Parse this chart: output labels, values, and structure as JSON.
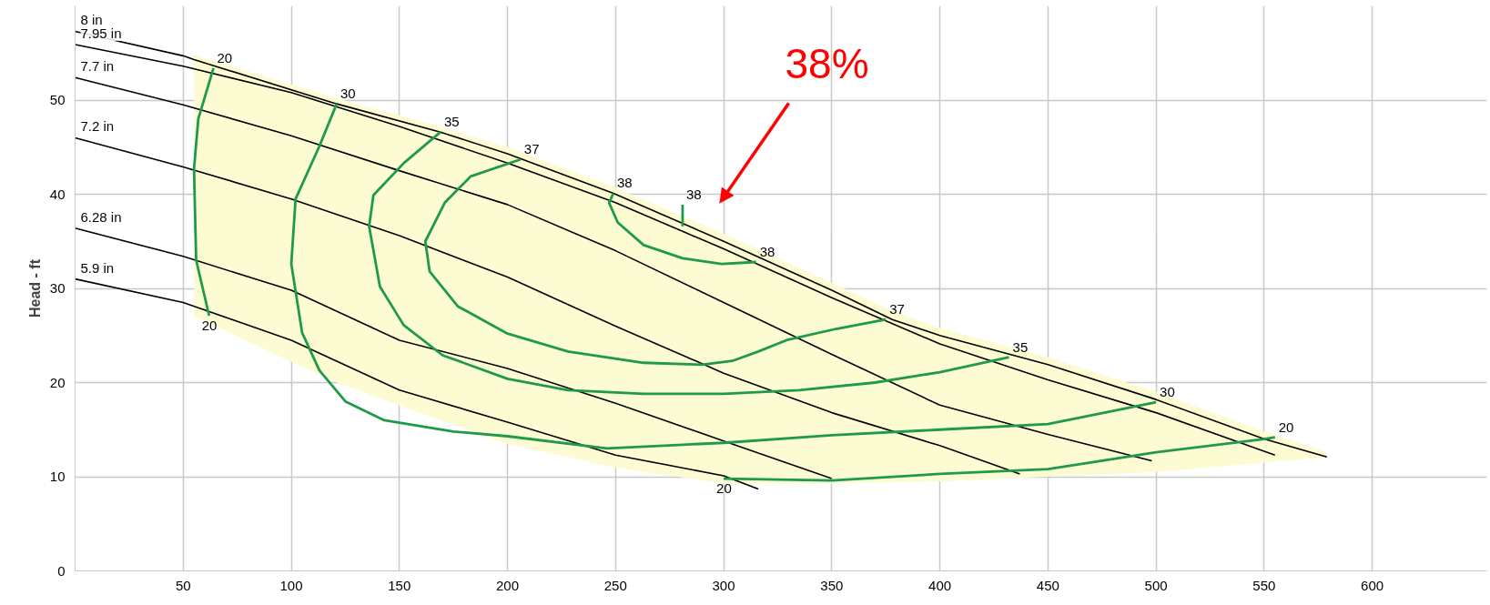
{
  "chart_data": {
    "type": "line",
    "ylabel": "Head - ft",
    "xlim": [
      0,
      653
    ],
    "ylim": [
      0,
      60
    ],
    "xticks": [
      50,
      100,
      150,
      200,
      250,
      300,
      350,
      400,
      450,
      500,
      550,
      600
    ],
    "yticks": [
      0,
      10,
      20,
      30,
      40,
      50
    ],
    "grid": true,
    "marker": "none",
    "line_style": "solid",
    "series": [
      {
        "name": "8 in",
        "color": "#000000",
        "x": [
          0,
          50,
          55,
          121,
          169,
          200,
          249,
          300,
          350,
          378,
          400,
          450,
          500,
          550,
          579
        ],
        "values": [
          57.3,
          54.7,
          54.3,
          49.6,
          46.6,
          44.3,
          40.1,
          35.0,
          29.8,
          26.7,
          25.0,
          21.9,
          18.2,
          14.0,
          12.1
        ],
        "upper": [
          null,
          null,
          54.8,
          50.2,
          47.2,
          45.0,
          40.8,
          35.8,
          30.6,
          27.6,
          25.8,
          22.7,
          19.0,
          14.8,
          12.6
        ],
        "lower": [
          null,
          null,
          27.0,
          20.0,
          16.0,
          13.5,
          11.0,
          9.3,
          9.3,
          9.4,
          9.5,
          10.0,
          10.5,
          11.5,
          12.1
        ]
      },
      {
        "name": "7.95 in",
        "color": "#000000",
        "x": [
          0,
          50,
          100,
          150,
          200,
          250,
          300,
          350,
          400,
          450,
          500,
          555
        ],
        "values": [
          55.9,
          53.6,
          50.8,
          47.2,
          43.3,
          39.1,
          34.2,
          29.0,
          24.1,
          20.3,
          16.8,
          12.3
        ]
      },
      {
        "name": "7.7 in",
        "color": "#000000",
        "x": [
          0,
          50,
          100,
          150,
          200,
          250,
          300,
          350,
          400,
          450,
          498
        ],
        "values": [
          52.4,
          49.5,
          46.2,
          42.5,
          38.9,
          34.0,
          28.5,
          23.0,
          17.6,
          14.5,
          11.7
        ]
      },
      {
        "name": "7.2 in",
        "color": "#000000",
        "x": [
          0,
          50,
          100,
          150,
          200,
          250,
          300,
          350,
          400,
          437
        ],
        "values": [
          46.0,
          42.9,
          39.5,
          35.6,
          31.2,
          26.0,
          21.0,
          16.8,
          13.3,
          10.3
        ]
      },
      {
        "name": "6.28 in",
        "color": "#000000",
        "x": [
          0,
          50,
          100,
          150,
          200,
          250,
          300,
          350
        ],
        "values": [
          36.4,
          33.4,
          29.8,
          24.5,
          21.5,
          17.8,
          13.8,
          9.8
        ]
      },
      {
        "name": "5.9 in",
        "color": "#000000",
        "x": [
          0,
          50,
          100,
          150,
          200,
          250,
          300,
          316
        ],
        "values": [
          31.0,
          28.5,
          24.5,
          19.2,
          15.8,
          12.3,
          10.1,
          8.7
        ]
      },
      {
        "color": "#1e9a4a",
        "x": [
          64,
          57,
          55,
          56,
          62
        ],
        "values": [
          53.4,
          48.0,
          42.7,
          33.0,
          27.1
        ]
      },
      {
        "color": "#1e9a4a",
        "x": [
          121,
          113,
          102,
          100,
          105,
          113,
          125,
          143,
          175,
          200,
          246,
          281,
          300,
          350,
          400,
          450,
          500
        ],
        "values": [
          49.6,
          45.1,
          39.5,
          32.6,
          25.3,
          21.3,
          18.0,
          16.0,
          14.8,
          14.3,
          13.0,
          13.4,
          13.6,
          14.4,
          15.0,
          15.6,
          17.9
        ]
      },
      {
        "color": "#1e9a4a",
        "x": [
          169,
          152,
          138,
          136,
          141,
          152,
          170,
          200,
          228,
          263,
          300,
          335,
          370,
          400,
          432
        ],
        "values": [
          46.6,
          43.3,
          39.9,
          36.6,
          30.2,
          26.1,
          22.9,
          20.4,
          19.2,
          18.8,
          18.8,
          19.2,
          20.0,
          21.1,
          22.7
        ]
      },
      {
        "color": "#1e9a4a",
        "x": [
          206,
          183,
          171,
          162,
          164,
          177,
          200,
          228,
          263,
          290,
          304,
          316,
          329,
          352,
          375
        ],
        "values": [
          43.7,
          41.9,
          39.1,
          35.0,
          31.8,
          28.1,
          25.2,
          23.3,
          22.1,
          21.9,
          22.3,
          23.3,
          24.5,
          25.7,
          26.7
        ]
      },
      {
        "color": "#1e9a4a",
        "x": [
          249,
          247,
          251,
          263,
          281,
          299,
          315
        ],
        "values": [
          40.1,
          39.1,
          37.0,
          34.6,
          33.2,
          32.6,
          32.8
        ]
      },
      {
        "color": "#1e9a4a",
        "x": [
          281,
          281
        ],
        "values": [
          38.9,
          36.6
        ]
      },
      {
        "color": "#1e9a4a",
        "x": [
          300,
          350,
          400,
          450,
          500,
          550,
          555
        ],
        "values": [
          9.8,
          9.6,
          10.3,
          10.8,
          12.6,
          14.0,
          14.2
        ]
      }
    ],
    "annotations": [
      {
        "text": "20",
        "x": 64,
        "y": 53.4
      },
      {
        "text": "20",
        "x": 62,
        "y": 27.1
      },
      {
        "text": "30",
        "x": 121,
        "y": 49.6
      },
      {
        "text": "35",
        "x": 169,
        "y": 46.6
      },
      {
        "text": "37",
        "x": 206,
        "y": 43.7
      },
      {
        "text": "38",
        "x": 249,
        "y": 40.1
      },
      {
        "text": "38",
        "x": 281,
        "y": 38.9
      },
      {
        "text": "38",
        "x": 315,
        "y": 32.8
      },
      {
        "text": "37",
        "x": 375,
        "y": 26.7
      },
      {
        "text": "35",
        "x": 432,
        "y": 22.7
      },
      {
        "text": "30",
        "x": 500,
        "y": 17.9
      },
      {
        "text": "20",
        "x": 555,
        "y": 14.2
      },
      {
        "text": "20",
        "x": 300,
        "y": 9.8
      },
      "38%"
    ]
  }
}
